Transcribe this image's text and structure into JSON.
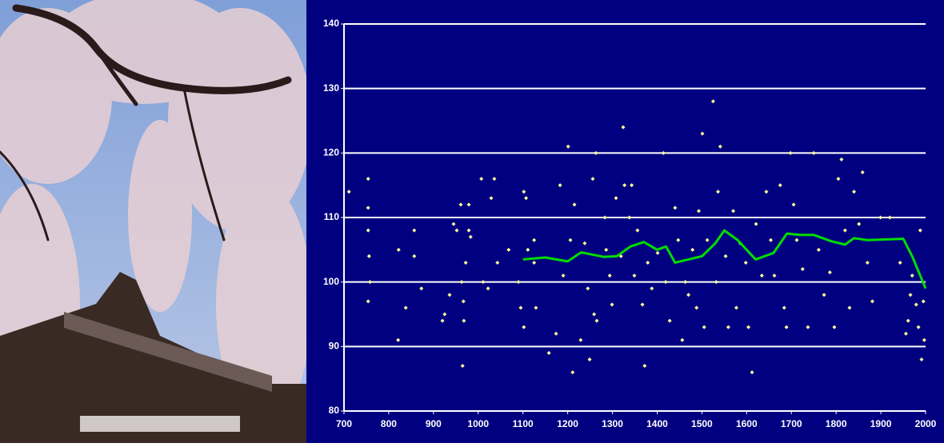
{
  "chart_data": {
    "type": "scatter",
    "xlim": [
      700,
      2000
    ],
    "ylim": [
      80,
      140
    ],
    "xticks": [
      700,
      800,
      900,
      1000,
      1100,
      1200,
      1300,
      1400,
      1500,
      1600,
      1700,
      1800,
      1900,
      2000
    ],
    "yticks": [
      80,
      90,
      100,
      110,
      120,
      130,
      140
    ],
    "grid": true,
    "background": "#000080",
    "grid_color": "#ffffff",
    "series": [
      {
        "mode": "markers",
        "color": "#ffff99",
        "x": [
          711,
          754,
          754,
          754,
          756,
          754,
          758,
          822,
          821,
          838,
          857,
          857,
          873,
          920,
          925,
          936,
          945,
          952,
          961,
          965,
          963,
          967,
          968,
          972,
          979,
          979,
          983,
          1007,
          1011,
          1022,
          1029,
          1036,
          1043,
          1068,
          1090,
          1095,
          1102,
          1107,
          1102,
          1111,
          1125,
          1129,
          1125,
          1158,
          1174,
          1183,
          1190,
          1201,
          1206,
          1211,
          1215,
          1229,
          1238,
          1245,
          1249,
          1256,
          1263,
          1259,
          1265,
          1283,
          1286,
          1294,
          1299,
          1308,
          1319,
          1324,
          1327,
          1338,
          1343,
          1349,
          1356,
          1367,
          1372,
          1379,
          1388,
          1401,
          1414,
          1419,
          1428,
          1440,
          1447,
          1456,
          1463,
          1470,
          1479,
          1488,
          1493,
          1501,
          1505,
          1512,
          1525,
          1532,
          1536,
          1541,
          1553,
          1559,
          1570,
          1577,
          1586,
          1598,
          1604,
          1612,
          1621,
          1634,
          1644,
          1654,
          1662,
          1675,
          1684,
          1689,
          1698,
          1705,
          1712,
          1725,
          1737,
          1750,
          1761,
          1773,
          1786,
          1796,
          1805,
          1812,
          1820,
          1830,
          1840,
          1851,
          1859,
          1870,
          1881,
          1899,
          1920,
          1943,
          1956,
          1961,
          1966,
          1970,
          1979,
          1984,
          1988,
          1991,
          1995,
          1997
        ],
        "values": [
          114,
          116,
          111.5,
          108,
          104,
          97,
          100,
          105,
          91,
          96,
          108,
          104,
          99,
          94,
          95,
          98,
          109,
          108,
          112,
          87,
          100,
          97,
          94,
          103,
          112,
          108,
          107,
          116,
          100,
          99,
          113,
          116,
          103,
          105,
          100,
          96,
          114,
          113,
          93,
          105,
          106.5,
          96,
          103,
          89,
          92,
          115,
          101,
          121,
          106.5,
          86,
          112,
          91,
          106,
          99,
          88,
          116,
          120,
          95,
          94,
          110,
          105,
          101,
          96.5,
          113,
          104,
          124,
          115,
          110,
          115,
          101,
          108,
          96.5,
          87,
          103,
          99,
          104.5,
          120,
          100,
          94,
          111.5,
          106.5,
          91,
          100,
          98,
          105,
          96,
          111,
          123,
          93,
          106.5,
          128,
          100,
          114,
          121,
          104,
          93,
          111,
          96,
          106,
          103,
          93,
          86,
          109,
          101,
          114,
          106.5,
          101,
          115,
          96,
          93,
          120,
          112,
          106.5,
          102,
          93,
          120,
          105,
          98,
          101.5,
          93,
          116,
          119,
          108,
          96,
          114,
          109,
          117,
          103,
          97,
          110,
          110,
          103,
          92,
          94,
          98,
          101,
          96.5,
          93,
          108,
          88,
          97,
          91
        ]
      },
      {
        "mode": "lines",
        "color": "#00dd00",
        "x": [
          1100,
          1150,
          1200,
          1230,
          1280,
          1310,
          1340,
          1370,
          1400,
          1420,
          1440,
          1470,
          1500,
          1530,
          1550,
          1580,
          1620,
          1660,
          1690,
          1720,
          1750,
          1790,
          1820,
          1840,
          1870,
          1950,
          1970,
          2000
        ],
        "values": [
          103.5,
          103.8,
          103.2,
          104.6,
          103.9,
          104,
          105.5,
          106.2,
          105,
          105.5,
          103,
          103.5,
          104,
          106,
          108,
          106.5,
          103.5,
          104.5,
          107.5,
          107.3,
          107.3,
          106.3,
          105.8,
          106.8,
          106.5,
          106.7,
          104,
          99
        ]
      }
    ]
  }
}
